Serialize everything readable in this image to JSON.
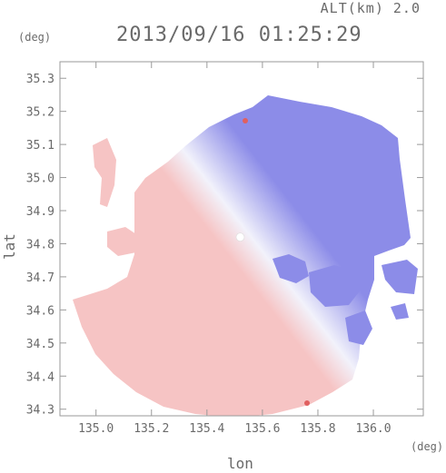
{
  "header": {
    "alt_label": "ALT(km) 2.0",
    "datetime": "2013/09/16 01:25:29"
  },
  "chart_data": {
    "type": "heatmap",
    "title": "2013/09/16 01:25:29",
    "xlabel": "lon",
    "ylabel": "lat",
    "x_unit": "(deg)",
    "y_unit": "(deg)",
    "xlim": [
      134.87,
      136.18
    ],
    "ylim": [
      34.28,
      35.35
    ],
    "xticks": [
      "135.0",
      "135.2",
      "135.4",
      "135.6",
      "135.8",
      "136.0"
    ],
    "yticks": [
      "34.3",
      "34.4",
      "34.5",
      "34.6",
      "34.7",
      "34.8",
      "34.9",
      "35.0",
      "35.1",
      "35.2",
      "35.3"
    ],
    "radar_center": {
      "lon": 135.52,
      "lat": 34.82
    },
    "colors": {
      "toward": "#f6c4c4",
      "neutral": "#f2f2fb",
      "away": "#8c8ce8",
      "hotspot": "#e06060",
      "axis": "#9a9a9a"
    },
    "grid": false
  }
}
